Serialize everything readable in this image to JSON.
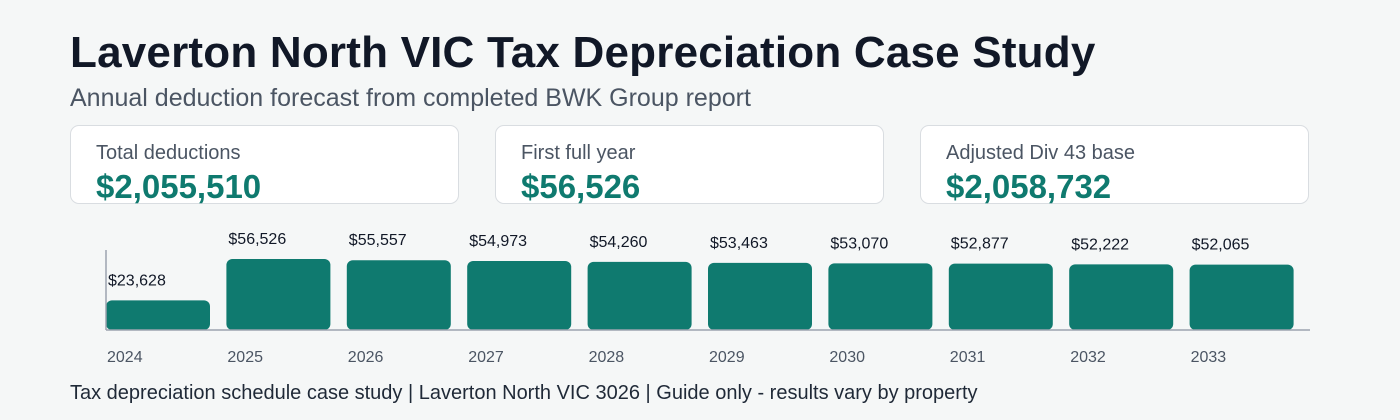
{
  "header": {
    "title": "Laverton North VIC Tax Depreciation Case Study",
    "subtitle": "Annual deduction forecast from completed BWK Group report"
  },
  "cards": [
    {
      "label": "Total deductions",
      "value": "$2,055,510"
    },
    {
      "label": "First full year",
      "value": "$56,526"
    },
    {
      "label": "Adjusted Div 43 base",
      "value": "$2,058,732"
    }
  ],
  "colors": {
    "bar": "#0f7a6f",
    "value_text": "#0f7a6f",
    "title_text": "#111827",
    "axis": "#9ca3af"
  },
  "chart_data": {
    "type": "bar",
    "categories": [
      "2024",
      "2025",
      "2026",
      "2027",
      "2028",
      "2029",
      "2030",
      "2031",
      "2032",
      "2033"
    ],
    "values": [
      23628,
      56526,
      55557,
      54973,
      54260,
      53463,
      53070,
      52877,
      52222,
      52065
    ],
    "value_labels": [
      "$23,628",
      "$56,526",
      "$55,557",
      "$54,973",
      "$54,260",
      "$53,463",
      "$53,070",
      "$52,877",
      "$52,222",
      "$52,065"
    ],
    "ylim": [
      0,
      60000
    ],
    "grid": false,
    "legend": "none"
  },
  "footer": {
    "text": "Tax depreciation schedule case study | Laverton North VIC 3026 | Guide only - results vary by property"
  }
}
